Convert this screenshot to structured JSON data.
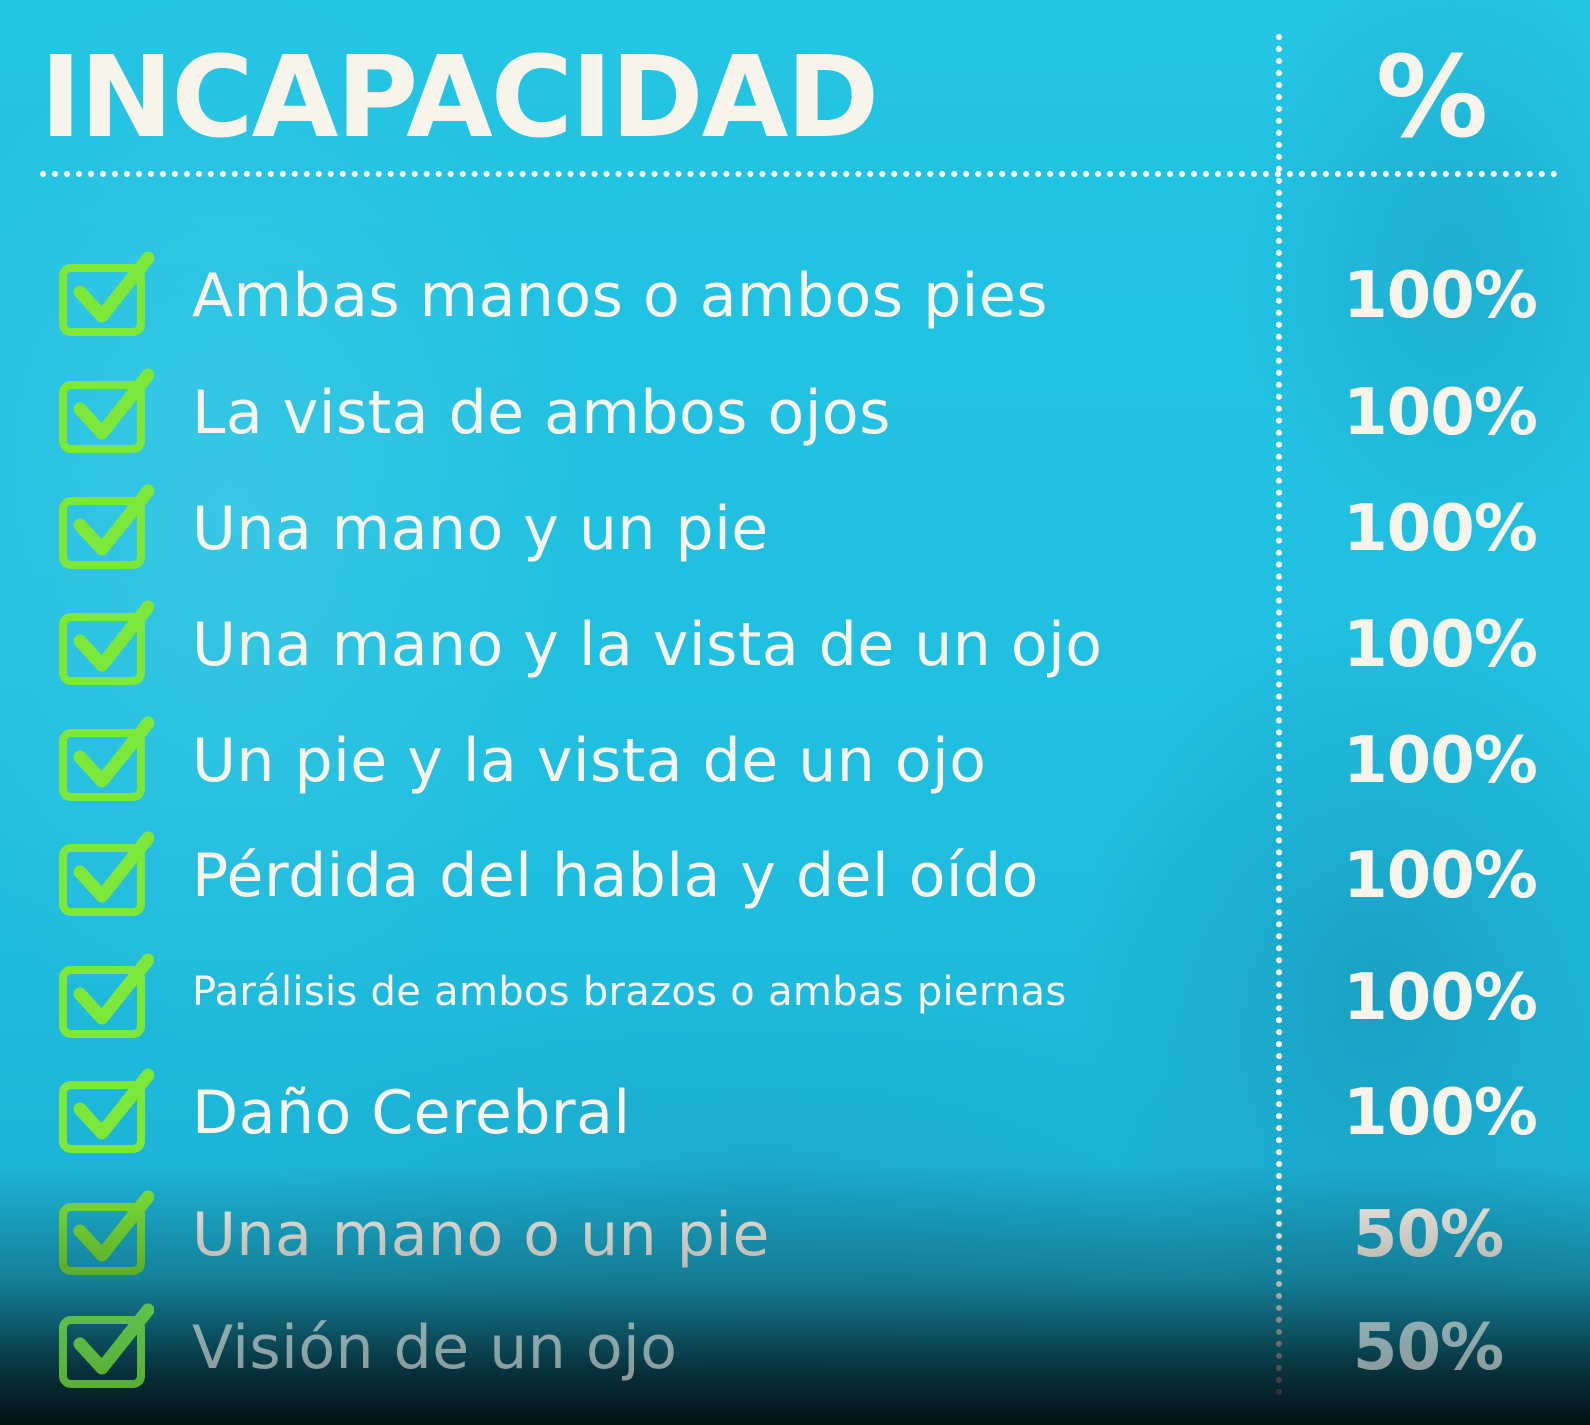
{
  "header": {
    "title": "INCAPACIDAD",
    "percent_header": "%"
  },
  "colors": {
    "background": "#20bfe0",
    "text": "#f7f4ec",
    "check_green": "#7ee83a"
  },
  "icons": {
    "row_icon": "checkbox-checked-icon"
  },
  "rows": [
    {
      "label": "Ambas manos o ambos pies",
      "value": "100%",
      "percent": 100
    },
    {
      "label": "La vista de ambos ojos",
      "value": "100%",
      "percent": 100
    },
    {
      "label": "Una mano y un pie",
      "value": "100%",
      "percent": 100
    },
    {
      "label": "Una mano y la vista de un ojo",
      "value": "100%",
      "percent": 100
    },
    {
      "label": "Un pie y la vista de un ojo",
      "value": "100%",
      "percent": 100
    },
    {
      "label": "Pérdida del habla y del oído",
      "value": "100%",
      "percent": 100
    },
    {
      "label": "Parálisis de ambos brazos o ambas piernas",
      "value": "100%",
      "percent": 100
    },
    {
      "label": "Daño Cerebral",
      "value": "100%",
      "percent": 100
    },
    {
      "label": "Una mano o un pie",
      "value": "50%",
      "percent": 50
    },
    {
      "label": "Visión de un ojo",
      "value": "50%",
      "percent": 50
    }
  ]
}
